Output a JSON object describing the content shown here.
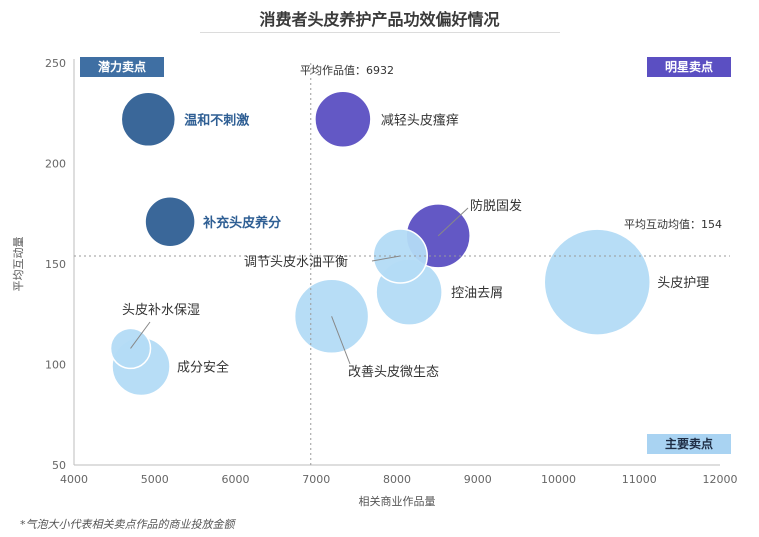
{
  "title": "消费者头皮养护产品功效偏好情况",
  "footnote": "*气泡大小代表相关卖点作品的商业投放金额",
  "chart_data": {
    "type": "scatter",
    "variant": "bubble",
    "xlabel": "相关商业作品量",
    "ylabel": "平均互动量",
    "xlim": [
      4000,
      12000
    ],
    "ylim": [
      50,
      250
    ],
    "xticks": [
      "4000",
      "5000",
      "6000",
      "7000",
      "8000",
      "9000",
      "10000",
      "11000",
      "12000"
    ],
    "yticks": [
      "50",
      "100",
      "150",
      "200",
      "250"
    ],
    "reference_lines": {
      "x": {
        "value": 6932,
        "label": "平均作品值：6932"
      },
      "y": {
        "value": 154,
        "label": "平均互动均值：154"
      }
    },
    "quadrants": [
      {
        "label": "潜力卖点",
        "position": "top-left",
        "color": "#3f6fa3"
      },
      {
        "label": "明星卖点",
        "position": "top-right",
        "color": "#5b4fc2"
      },
      {
        "label": "主要卖点",
        "position": "bottom-right",
        "color": "#a9d3f2"
      }
    ],
    "colors": {
      "dark_blue": "#2f5f94",
      "purple": "#5b4fc2",
      "light_blue": "#b3dbf5"
    },
    "points": [
      {
        "name": "温和不刺激",
        "x": 4920,
        "y": 222,
        "size": 27,
        "color": "#2f5f94",
        "label_style": "dark"
      },
      {
        "name": "减轻头皮瘙痒",
        "x": 7330,
        "y": 222,
        "size": 28,
        "color": "#5b4fc2",
        "label_style": "normal"
      },
      {
        "name": "补充头皮养分",
        "x": 5190,
        "y": 171,
        "size": 25,
        "color": "#2f5f94",
        "label_style": "dark"
      },
      {
        "name": "防脱固发",
        "x": 8510,
        "y": 164,
        "size": 32,
        "color": "#5b4fc2",
        "label_style": "normal"
      },
      {
        "name": "调节头皮水油平衡",
        "x": 8040,
        "y": 154,
        "size": 27,
        "color": "#b3dbf5",
        "label_style": "normal"
      },
      {
        "name": "头皮护理",
        "x": 10480,
        "y": 141,
        "size": 53,
        "color": "#b3dbf5",
        "label_style": "normal"
      },
      {
        "name": "控油去屑",
        "x": 8150,
        "y": 136,
        "size": 33,
        "color": "#b3dbf5",
        "label_style": "normal"
      },
      {
        "name": "改善头皮微生态",
        "x": 7190,
        "y": 124,
        "size": 37,
        "color": "#b3dbf5",
        "label_style": "normal"
      },
      {
        "name": "头皮补水保湿",
        "x": 4700,
        "y": 108,
        "size": 20,
        "color": "#b3dbf5",
        "label_style": "normal"
      },
      {
        "name": "成分安全",
        "x": 4830,
        "y": 99,
        "size": 29,
        "color": "#b3dbf5",
        "label_style": "normal"
      }
    ]
  }
}
